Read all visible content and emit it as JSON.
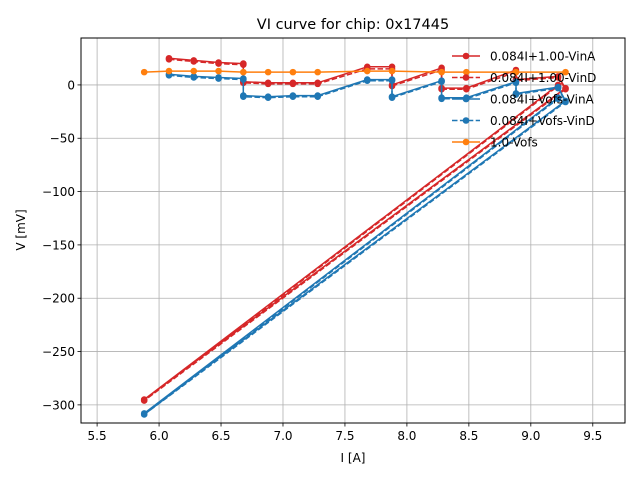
{
  "chart_data": {
    "type": "line",
    "title": "VI curve for chip: 0x17445",
    "xlabel": "I [A]",
    "ylabel": "V [mV]",
    "xlim": [
      5.37,
      9.76
    ],
    "ylim": [
      -317,
      44
    ],
    "grid": true,
    "legend_position": "top-right",
    "x_ticks": [
      "5.5",
      "6.0",
      "6.5",
      "7.0",
      "7.5",
      "8.0",
      "8.5",
      "9.0",
      "9.5"
    ],
    "x_tick_values": [
      5.5,
      6.0,
      6.5,
      7.0,
      7.5,
      8.0,
      8.5,
      9.0,
      9.5
    ],
    "y_ticks": [
      "0",
      "−50",
      "−100",
      "−150",
      "−200",
      "−250",
      "−300"
    ],
    "y_tick_values": [
      0,
      -50,
      -100,
      -150,
      -200,
      -250,
      -300
    ],
    "series": [
      {
        "name": "0.084I+1.00-VinA",
        "color": "#d62728",
        "dash": "solid",
        "x": [
          6.08,
          6.28,
          6.48,
          6.68,
          6.68,
          6.88,
          7.08,
          7.28,
          7.68,
          7.88,
          7.88,
          8.28,
          8.28,
          8.48,
          8.88,
          8.88,
          9.22,
          9.28,
          5.88,
          9.22
        ],
        "y": [
          25,
          23,
          21,
          20,
          3,
          2,
          2,
          2,
          17,
          17,
          0,
          16,
          -3,
          -3,
          14,
          5,
          8,
          -3,
          -295,
          0
        ]
      },
      {
        "name": "0.084I+1.00-VinD",
        "color": "#d62728",
        "dash": "dashed",
        "x": [
          6.08,
          6.28,
          6.48,
          6.68,
          6.68,
          6.88,
          7.08,
          7.28,
          7.68,
          7.88,
          7.88,
          8.28,
          8.28,
          8.48,
          8.88,
          8.88,
          9.22,
          9.28,
          5.88,
          9.22
        ],
        "y": [
          24,
          22,
          20,
          19,
          2,
          1,
          1,
          1,
          15,
          15,
          -1,
          14,
          -4,
          -4,
          12,
          4,
          7,
          -4,
          -296,
          -1
        ]
      },
      {
        "name": "0.084I+Vofs-VinA",
        "color": "#1f77b4",
        "dash": "solid",
        "x": [
          6.08,
          6.28,
          6.48,
          6.68,
          6.68,
          6.88,
          7.08,
          7.28,
          7.68,
          7.88,
          7.88,
          8.28,
          8.28,
          8.48,
          8.88,
          8.88,
          9.22,
          9.28,
          5.88,
          9.22
        ],
        "y": [
          10,
          8,
          7,
          6,
          -10,
          -11,
          -10,
          -10,
          5,
          5,
          -11,
          4,
          -12,
          -12,
          3,
          -8,
          -2,
          -15,
          -308,
          -12
        ]
      },
      {
        "name": "0.084I+Vofs-VinD",
        "color": "#1f77b4",
        "dash": "dashed",
        "x": [
          6.08,
          6.28,
          6.48,
          6.68,
          6.68,
          6.88,
          7.08,
          7.28,
          7.68,
          7.88,
          7.88,
          8.28,
          8.28,
          8.48,
          8.88,
          8.88,
          9.22,
          9.28,
          5.88,
          9.22
        ],
        "y": [
          9,
          7,
          6,
          5,
          -11,
          -12,
          -11,
          -11,
          4,
          4,
          -12,
          3,
          -13,
          -13,
          2,
          -9,
          -3,
          -16,
          -309,
          -13
        ]
      },
      {
        "name": "1.0-Vofs",
        "color": "#ff7f0e",
        "dash": "solid",
        "x": [
          5.88,
          6.08,
          6.28,
          6.48,
          6.68,
          6.88,
          7.08,
          7.28,
          7.68,
          7.88,
          8.28,
          8.48,
          8.88,
          9.28
        ],
        "y": [
          12,
          13,
          13,
          13,
          12,
          12,
          12,
          12,
          13,
          13,
          12,
          12,
          12,
          12
        ]
      }
    ]
  }
}
